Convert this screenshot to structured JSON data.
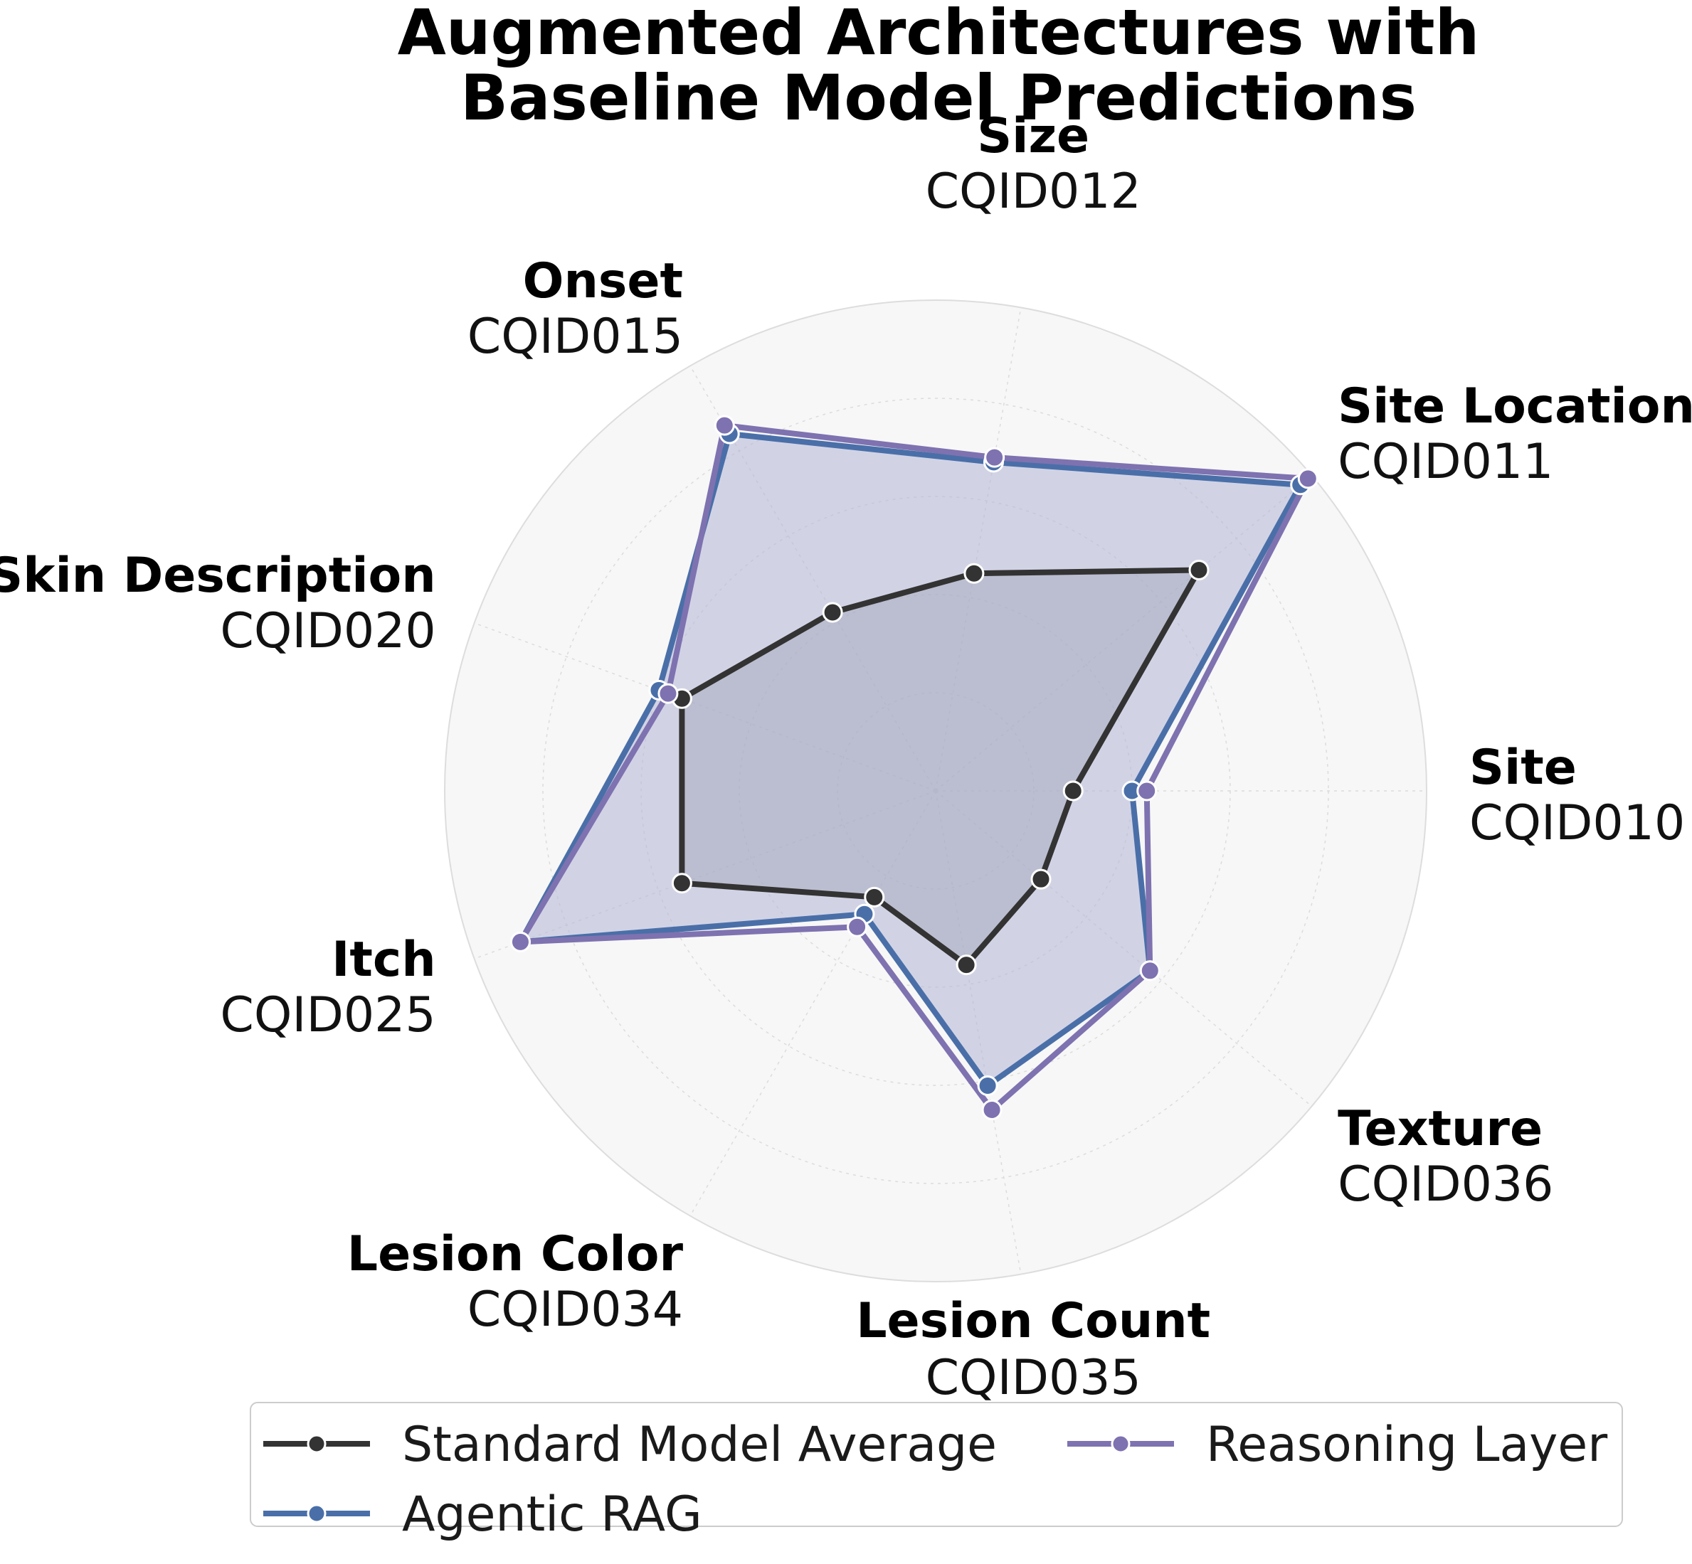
{
  "chart_data": {
    "type": "radar",
    "title_lines": [
      "Augmented Architectures with",
      "Baseline Model Predictions"
    ],
    "axes": [
      {
        "name": "Site",
        "id": "CQID010"
      },
      {
        "name": "Site Location",
        "id": "CQID011"
      },
      {
        "name": "Size",
        "id": "CQID012"
      },
      {
        "name": "Onset",
        "id": "CQID015"
      },
      {
        "name": "Skin Description",
        "id": "CQID020"
      },
      {
        "name": "Itch",
        "id": "CQID025"
      },
      {
        "name": "Lesion Color",
        "id": "CQID034"
      },
      {
        "name": "Lesion Count",
        "id": "CQID035"
      },
      {
        "name": "Texture",
        "id": "CQID036"
      }
    ],
    "rlim": [
      0,
      1
    ],
    "grid": true,
    "legend_position": "bottom",
    "series": [
      {
        "name": "Standard Model Average",
        "color": "#333333",
        "fill": false,
        "values": [
          0.28,
          0.7,
          0.45,
          0.42,
          0.55,
          0.55,
          0.25,
          0.36,
          0.28
        ]
      },
      {
        "name": "Agentic RAG",
        "color": "#4a6fa8",
        "fill": true,
        "fill_color": "#b7bbd9",
        "values": [
          0.4,
          0.97,
          0.68,
          0.84,
          0.6,
          0.9,
          0.29,
          0.61,
          0.57
        ]
      },
      {
        "name": "Reasoning Layer",
        "color": "#7f72b0",
        "fill": false,
        "values": [
          0.43,
          0.99,
          0.69,
          0.86,
          0.58,
          0.9,
          0.32,
          0.66,
          0.57
        ]
      }
    ]
  }
}
